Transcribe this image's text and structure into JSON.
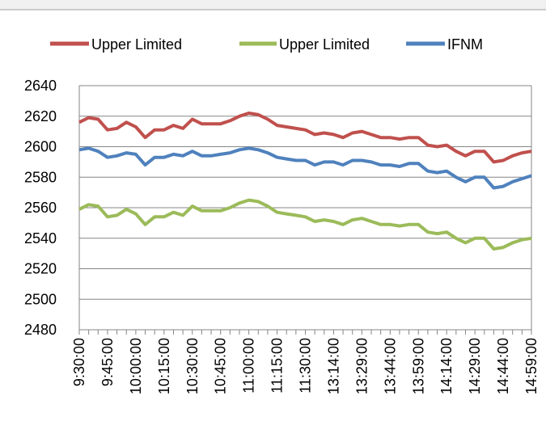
{
  "chart_data": {
    "type": "line",
    "categories": [
      "9:30:00",
      null,
      null,
      "9:45:00",
      null,
      null,
      "10:00:00",
      null,
      null,
      "10:15:00",
      null,
      null,
      "10:30:00",
      null,
      null,
      "10:45:00",
      null,
      null,
      "11:00:00",
      null,
      null,
      "11:15:00",
      null,
      null,
      "11:30:00",
      null,
      null,
      "13:14:00",
      null,
      null,
      "13:29:00",
      null,
      null,
      "13:44:00",
      null,
      null,
      "13:59:00",
      null,
      null,
      "14:14:00",
      null,
      null,
      "14:29:00",
      null,
      null,
      "14:44:00",
      null,
      null,
      "14:59:00"
    ],
    "series": [
      {
        "name": "Upper Limited",
        "color": "#c0504d",
        "values": [
          2616,
          2619,
          2618,
          2611,
          2612,
          2616,
          2613,
          2606,
          2611,
          2611,
          2614,
          2612,
          2618,
          2615,
          2615,
          2615,
          2617,
          2620,
          2622,
          2621,
          2618,
          2614,
          2613,
          2612,
          2611,
          2608,
          2609,
          2608,
          2606,
          2609,
          2610,
          2608,
          2606,
          2606,
          2605,
          2606,
          2606,
          2601,
          2600,
          2601,
          2597,
          2594,
          2597,
          2597,
          2590,
          2591,
          2594,
          2596,
          2597
        ]
      },
      {
        "name": "Upper Limited",
        "color": "#9bbb59",
        "values": [
          2559,
          2562,
          2561,
          2554,
          2555,
          2559,
          2556,
          2549,
          2554,
          2554,
          2557,
          2555,
          2561,
          2558,
          2558,
          2558,
          2560,
          2563,
          2565,
          2564,
          2561,
          2557,
          2556,
          2555,
          2554,
          2551,
          2552,
          2551,
          2549,
          2552,
          2553,
          2551,
          2549,
          2549,
          2548,
          2549,
          2549,
          2544,
          2543,
          2544,
          2540,
          2537,
          2540,
          2540,
          2533,
          2534,
          2537,
          2539,
          2540
        ]
      },
      {
        "name": "IFNM",
        "color": "#4f81bd",
        "values": [
          2598,
          2599,
          2597,
          2593,
          2594,
          2596,
          2595,
          2588,
          2593,
          2593,
          2595,
          2594,
          2597,
          2594,
          2594,
          2595,
          2596,
          2598,
          2599,
          2598,
          2596,
          2593,
          2592,
          2591,
          2591,
          2588,
          2590,
          2590,
          2588,
          2591,
          2591,
          2590,
          2588,
          2588,
          2587,
          2589,
          2589,
          2584,
          2583,
          2584,
          2580,
          2577,
          2580,
          2580,
          2573,
          2574,
          2577,
          2579,
          2581
        ]
      }
    ],
    "ylim": [
      2480,
      2640
    ],
    "yticks": [
      2480,
      2500,
      2520,
      2540,
      2560,
      2580,
      2600,
      2620,
      2640
    ],
    "grid": true,
    "legend": "top"
  }
}
